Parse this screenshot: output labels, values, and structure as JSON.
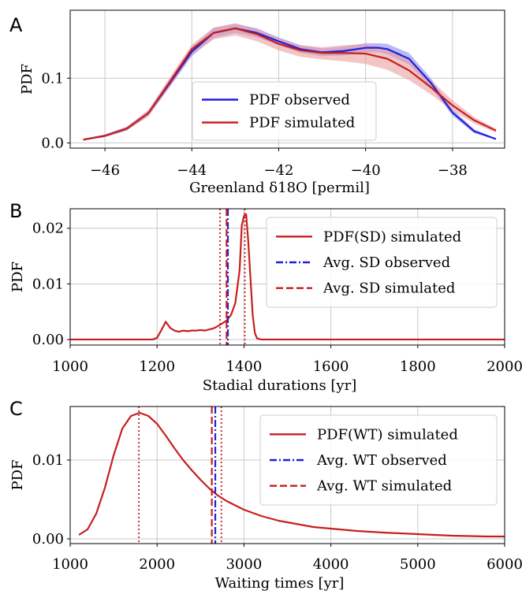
{
  "chart_data": [
    {
      "panel": "A",
      "type": "line",
      "xlabel": "Greenland δ18O [permil]",
      "ylabel": "PDF",
      "xlim": [
        -46.8,
        -36.8
      ],
      "ylim": [
        -0.008,
        0.205
      ],
      "xticks": [
        -46,
        -44,
        -42,
        -40,
        -38
      ],
      "xtick_labels": [
        "−46",
        "−44",
        "−42",
        "−40",
        "−38"
      ],
      "yticks": [
        0.0,
        0.1
      ],
      "ytick_labels": [
        "0.0",
        "0.1"
      ],
      "grid": true,
      "legend": {
        "position": "lower-center",
        "entries": [
          {
            "label": "PDF observed",
            "color": "#1f1fdc",
            "style": "solid"
          },
          {
            "label": "PDF simulated",
            "color": "#c81e1e",
            "style": "solid"
          }
        ]
      },
      "series": [
        {
          "name": "PDF observed",
          "color": "#1f1fdc",
          "band_color": "#8c8cf0",
          "x": [
            -46.5,
            -46.0,
            -45.5,
            -45.0,
            -44.5,
            -44.0,
            -43.5,
            -43.0,
            -42.5,
            -42.0,
            -41.5,
            -41.0,
            -40.5,
            -40.0,
            -39.7,
            -39.5,
            -39.0,
            -38.5,
            -38.0,
            -37.5,
            -37.0
          ],
          "y": [
            0.005,
            0.011,
            0.022,
            0.046,
            0.093,
            0.141,
            0.17,
            0.177,
            0.17,
            0.157,
            0.145,
            0.14,
            0.142,
            0.147,
            0.147,
            0.145,
            0.13,
            0.093,
            0.047,
            0.018,
            0.006
          ],
          "band_lo": [
            0.004,
            0.009,
            0.019,
            0.042,
            0.087,
            0.134,
            0.162,
            0.17,
            0.163,
            0.151,
            0.139,
            0.134,
            0.135,
            0.14,
            0.14,
            0.137,
            0.121,
            0.086,
            0.042,
            0.015,
            0.005
          ],
          "band_hi": [
            0.006,
            0.013,
            0.025,
            0.05,
            0.099,
            0.148,
            0.178,
            0.184,
            0.177,
            0.163,
            0.151,
            0.146,
            0.149,
            0.154,
            0.154,
            0.153,
            0.139,
            0.1,
            0.052,
            0.021,
            0.007
          ]
        },
        {
          "name": "PDF simulated",
          "color": "#c81e1e",
          "band_color": "#eba0a0",
          "x": [
            -46.5,
            -46.0,
            -45.5,
            -45.0,
            -44.5,
            -44.0,
            -43.5,
            -43.0,
            -42.5,
            -42.0,
            -41.5,
            -41.0,
            -40.5,
            -40.0,
            -39.5,
            -39.0,
            -38.5,
            -38.0,
            -37.5,
            -37.0
          ],
          "y": [
            0.005,
            0.011,
            0.022,
            0.046,
            0.095,
            0.145,
            0.17,
            0.177,
            0.168,
            0.153,
            0.143,
            0.139,
            0.139,
            0.138,
            0.13,
            0.112,
            0.086,
            0.058,
            0.035,
            0.019
          ],
          "band_lo": [
            0.004,
            0.009,
            0.019,
            0.041,
            0.087,
            0.136,
            0.16,
            0.166,
            0.157,
            0.143,
            0.133,
            0.129,
            0.126,
            0.122,
            0.113,
            0.097,
            0.075,
            0.05,
            0.03,
            0.016
          ],
          "band_hi": [
            0.006,
            0.013,
            0.025,
            0.051,
            0.102,
            0.152,
            0.178,
            0.185,
            0.176,
            0.162,
            0.151,
            0.148,
            0.151,
            0.153,
            0.146,
            0.127,
            0.097,
            0.066,
            0.04,
            0.022
          ]
        }
      ]
    },
    {
      "panel": "B",
      "type": "line",
      "xlabel": "Stadial durations [yr]",
      "ylabel": "PDF",
      "xlim": [
        1000,
        2000
      ],
      "ylim": [
        -0.001,
        0.0235
      ],
      "xticks": [
        1000,
        1200,
        1400,
        1600,
        1800,
        2000
      ],
      "xtick_labels": [
        "1000",
        "1200",
        "1400",
        "1600",
        "1800",
        "2000"
      ],
      "yticks": [
        0.0,
        0.01,
        0.02
      ],
      "ytick_labels": [
        "0.00",
        "0.01",
        "0.02"
      ],
      "grid": true,
      "legend": {
        "position": "top-right",
        "entries": [
          {
            "label": "PDF(SD) simulated",
            "color": "#c81e1e",
            "style": "solid"
          },
          {
            "label": "Avg. SD observed",
            "color": "#1f1fdc",
            "style": "dashdot"
          },
          {
            "label": "Avg. SD simulated",
            "color": "#c81e1e",
            "style": "dashed"
          }
        ]
      },
      "series": [
        {
          "name": "PDF(SD) simulated",
          "color": "#c81e1e",
          "x": [
            1000,
            1190,
            1200,
            1210,
            1220,
            1230,
            1240,
            1250,
            1260,
            1270,
            1280,
            1290,
            1300,
            1310,
            1320,
            1330,
            1340,
            1350,
            1360,
            1370,
            1380,
            1390,
            1395,
            1400,
            1405,
            1410,
            1415,
            1420,
            1425,
            1430,
            1440,
            2000
          ],
          "y": [
            0,
            0,
            0.0003,
            0.0017,
            0.0032,
            0.0021,
            0.0016,
            0.0014,
            0.0016,
            0.0015,
            0.0016,
            0.0016,
            0.0017,
            0.0016,
            0.0018,
            0.002,
            0.0024,
            0.0029,
            0.0034,
            0.0044,
            0.0065,
            0.0125,
            0.0205,
            0.0222,
            0.0225,
            0.0175,
            0.011,
            0.0045,
            0.0012,
            0.0002,
            0,
            0
          ]
        }
      ],
      "vlines": [
        {
          "x": 1363,
          "color": "#1f1fdc",
          "style": "dashdot"
        },
        {
          "x": 1360,
          "color": "#c81e1e",
          "style": "dashed"
        },
        {
          "x": 1345,
          "color": "#c81e1e",
          "style": "dotted"
        },
        {
          "x": 1402,
          "color": "#c81e1e",
          "style": "dotted"
        }
      ]
    },
    {
      "panel": "C",
      "type": "line",
      "xlabel": "Waiting times [yr]",
      "ylabel": "PDF",
      "xlim": [
        1000,
        6000
      ],
      "ylim": [
        -0.0006,
        0.0168
      ],
      "xticks": [
        1000,
        2000,
        3000,
        4000,
        5000,
        6000
      ],
      "xtick_labels": [
        "1000",
        "2000",
        "3000",
        "4000",
        "5000",
        "6000"
      ],
      "yticks": [
        0.0,
        0.01
      ],
      "ytick_labels": [
        "0.00",
        "0.01"
      ],
      "grid": true,
      "legend": {
        "position": "top-right",
        "entries": [
          {
            "label": "PDF(WT) simulated",
            "color": "#c81e1e",
            "style": "solid"
          },
          {
            "label": "Avg. WT observed",
            "color": "#1f1fdc",
            "style": "dashdot"
          },
          {
            "label": "Avg. WT simulated",
            "color": "#c81e1e",
            "style": "dashed"
          }
        ]
      },
      "series": [
        {
          "name": "PDF(WT) simulated",
          "color": "#c81e1e",
          "x": [
            1100,
            1200,
            1300,
            1400,
            1500,
            1600,
            1700,
            1800,
            1900,
            2000,
            2100,
            2200,
            2300,
            2400,
            2500,
            2600,
            2700,
            2800,
            3000,
            3200,
            3400,
            3600,
            3800,
            4000,
            4300,
            4600,
            5000,
            5400,
            5800,
            6000
          ],
          "y": [
            0.0005,
            0.0012,
            0.0032,
            0.0065,
            0.0106,
            0.014,
            0.0156,
            0.016,
            0.0156,
            0.0146,
            0.0131,
            0.0115,
            0.01,
            0.0087,
            0.0075,
            0.0064,
            0.0055,
            0.0048,
            0.0037,
            0.0029,
            0.0023,
            0.0019,
            0.0015,
            0.0013,
            0.001,
            0.0008,
            0.0006,
            0.0004,
            0.0003,
            0.0003
          ]
        }
      ],
      "vlines": [
        {
          "x": 2670,
          "color": "#1f1fdc",
          "style": "dashdot"
        },
        {
          "x": 2630,
          "color": "#c81e1e",
          "style": "dashed"
        },
        {
          "x": 1790,
          "color": "#c81e1e",
          "style": "dotted"
        },
        {
          "x": 2740,
          "color": "#c81e1e",
          "style": "dotted"
        }
      ]
    }
  ]
}
